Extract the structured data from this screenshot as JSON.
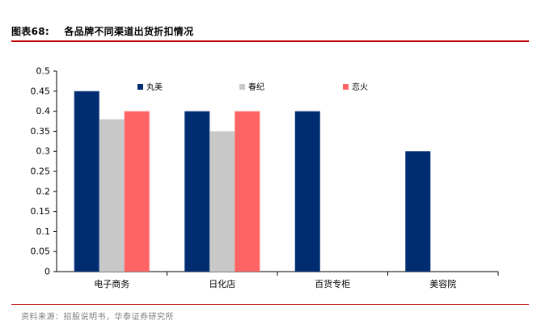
{
  "header": {
    "figure_number": "图表68:",
    "figure_title": "各品牌不同渠道出货折扣情况"
  },
  "source_note": "资料来源：招股说明书，华泰证券研究所",
  "chart_data": {
    "type": "bar",
    "title": "",
    "xlabel": "",
    "ylabel": "",
    "categories": [
      "电子商务",
      "日化店",
      "百货专柜",
      "美容院"
    ],
    "series": [
      {
        "name": "丸美",
        "color": "#002d72",
        "values": [
          0.45,
          0.4,
          0.4,
          0.3
        ]
      },
      {
        "name": "春纪",
        "color": "#c8c8c8",
        "values": [
          0.38,
          0.35,
          null,
          null
        ]
      },
      {
        "name": "恋火",
        "color": "#ff6464",
        "values": [
          0.4,
          0.4,
          null,
          null
        ]
      }
    ],
    "ylim": [
      0,
      0.5
    ],
    "yticks": [
      0,
      0.05,
      0.1,
      0.15,
      0.2,
      0.25,
      0.3,
      0.35,
      0.4,
      0.45,
      0.5
    ],
    "ytick_labels": [
      "0",
      "0.05",
      "0.1",
      "0.15",
      "0.2",
      "0.25",
      "0.3",
      "0.35",
      "0.4",
      "0.45",
      "0.5"
    ],
    "grid": false,
    "legend_position": "top-inside"
  }
}
